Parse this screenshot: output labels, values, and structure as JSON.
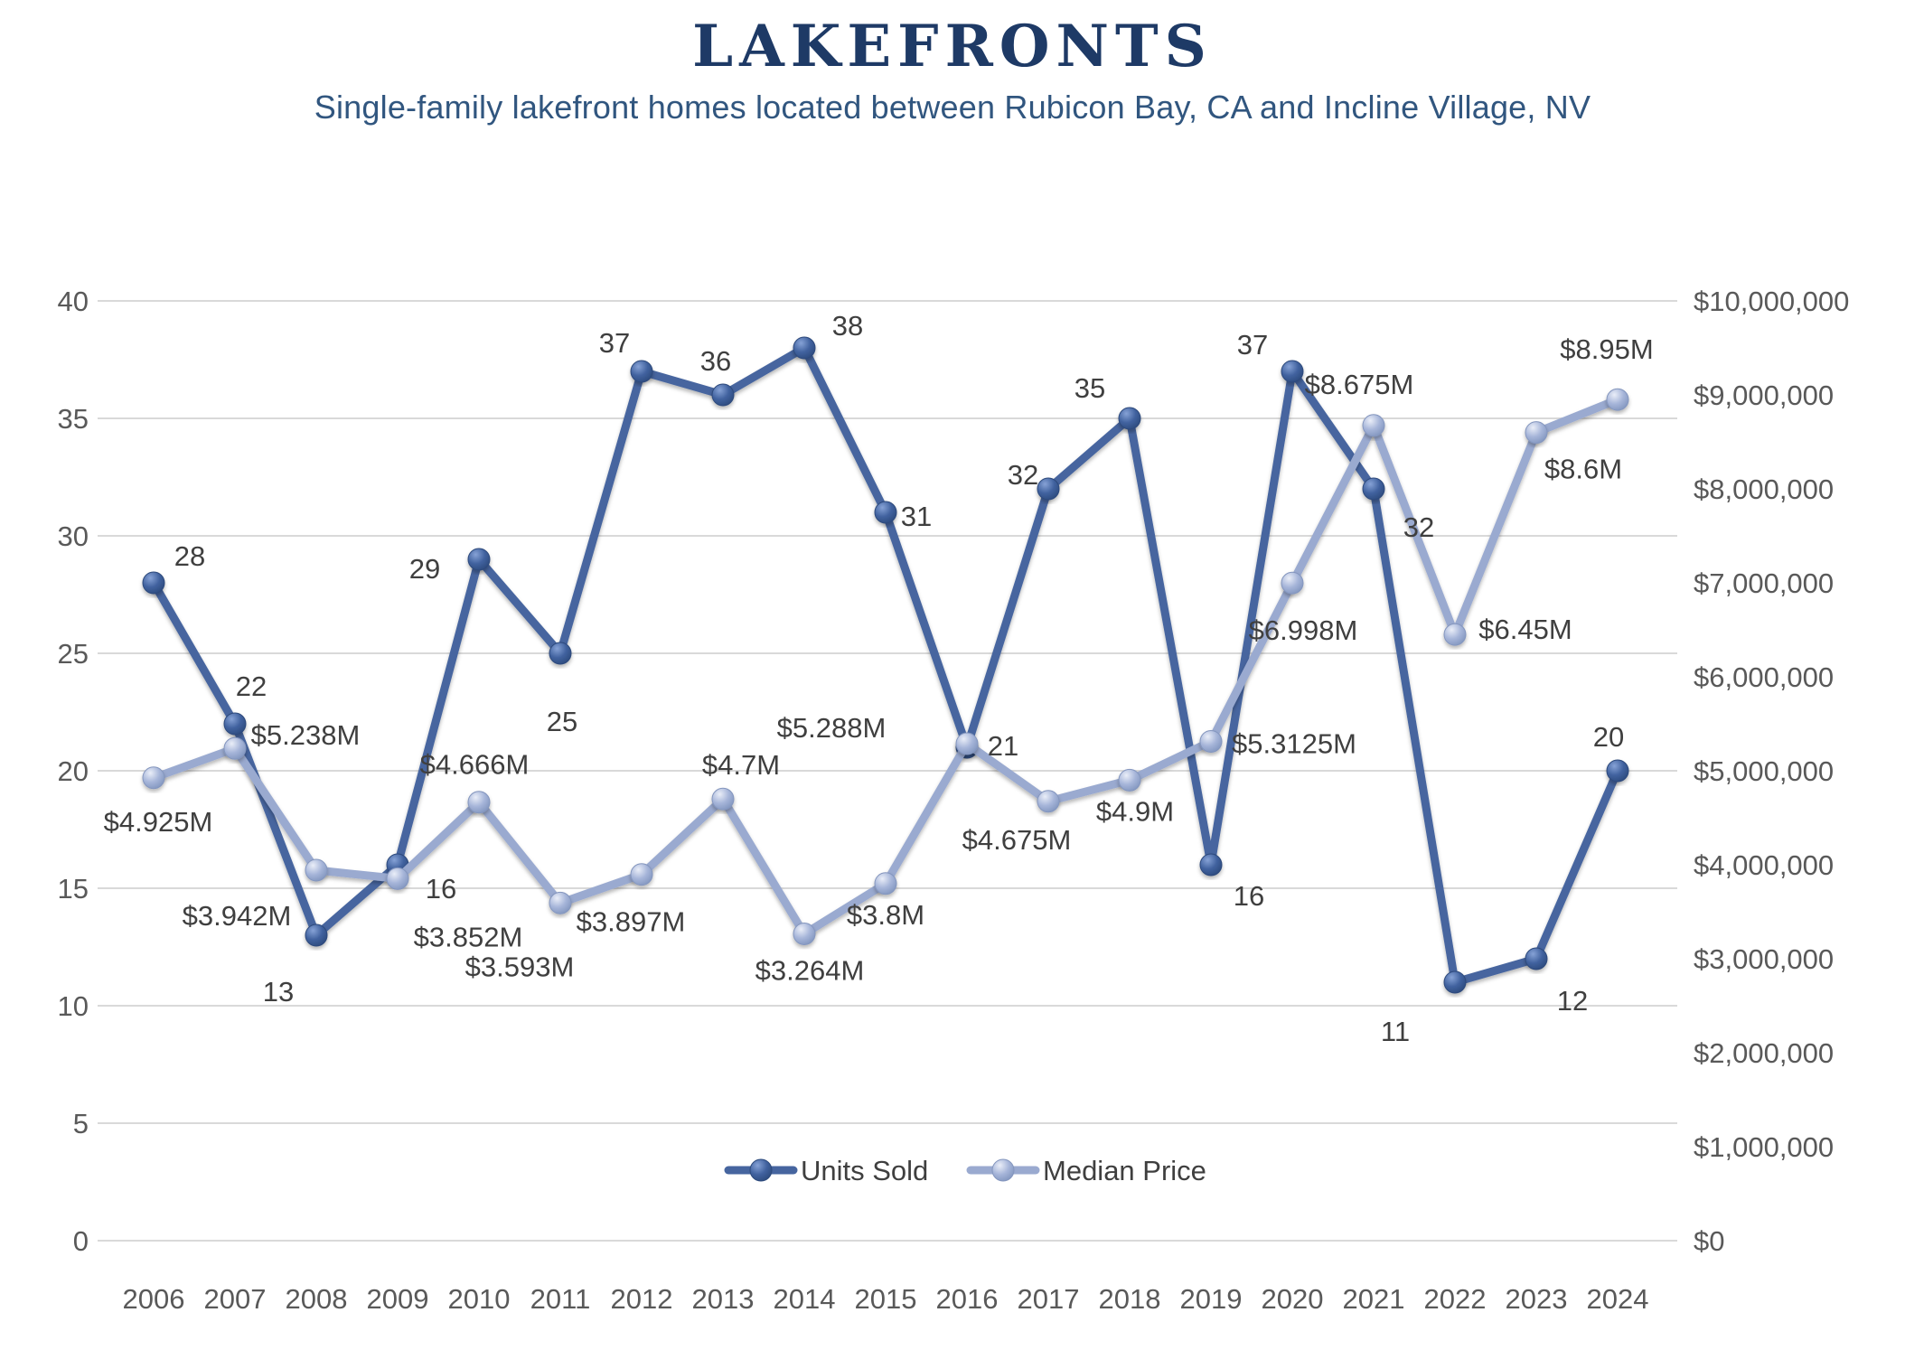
{
  "header": {
    "title": "LAKEFRONTS",
    "subtitle": "Single-family lakefront homes located between Rubicon Bay, CA and Incline Village, NV"
  },
  "legend": {
    "units_label": "Units Sold",
    "price_label": "Median Price"
  },
  "colors": {
    "title": "#1e3a66",
    "subtitle": "#31567f",
    "units_line": "#46659f",
    "price_line": "#9aaad0",
    "axis_text": "#595959",
    "data_label": "#3f3f3f",
    "gridline": "#d9d9d9"
  },
  "chart_data": {
    "type": "line",
    "title": "LAKEFRONTS",
    "subtitle": "Single-family lakefront homes located between Rubicon Bay, CA and Incline Village, NV",
    "categories": [
      "2006",
      "2007",
      "2008",
      "2009",
      "2010",
      "2011",
      "2012",
      "2013",
      "2014",
      "2015",
      "2016",
      "2017",
      "2018",
      "2019",
      "2020",
      "2021",
      "2022",
      "2023",
      "2024"
    ],
    "series": [
      {
        "name": "Units Sold",
        "axis": "left",
        "values": [
          28,
          22,
          13,
          16,
          29,
          25,
          37,
          36,
          38,
          31,
          21,
          32,
          35,
          16,
          37,
          32,
          11,
          12,
          20
        ],
        "labels": [
          "28",
          "22",
          "13",
          "16",
          "29",
          "25",
          "37",
          "36",
          "38",
          "31",
          "21",
          "32",
          "35",
          "16",
          "37",
          "32",
          "11",
          "12",
          "20"
        ]
      },
      {
        "name": "Median Price",
        "axis": "right",
        "values": [
          4925000,
          5238000,
          3942000,
          3852000,
          4666000,
          3593000,
          3897000,
          4700000,
          3264000,
          3800000,
          5288000,
          4675000,
          4900000,
          5312500,
          6998000,
          8675000,
          6450000,
          8600000,
          8950000
        ],
        "labels": [
          "$4.925M",
          "$5.238M",
          "$3.942M",
          "$3.852M",
          "$4.666M",
          "$3.593M",
          "$3.897M",
          "$4.7M",
          "$3.264M",
          "$3.8M",
          "$5.288M",
          "$4.675M",
          "$4.9M",
          "$5.3125M",
          "$6.998M",
          "$8.675M",
          "$6.45M",
          "$8.6M",
          "$8.95M"
        ]
      }
    ],
    "left_axis": {
      "min": 0,
      "max": 40,
      "step": 5,
      "ticks": [
        "0",
        "5",
        "10",
        "15",
        "20",
        "25",
        "30",
        "35",
        "40"
      ]
    },
    "right_axis": {
      "min": 0,
      "max": 10000000,
      "step": 1000000,
      "ticks": [
        "$0",
        "$1,000,000",
        "$2,000,000",
        "$3,000,000",
        "$4,000,000",
        "$5,000,000",
        "$6,000,000",
        "$7,000,000",
        "$8,000,000",
        "$9,000,000",
        "$10,000,000"
      ]
    },
    "grid": "horizontal",
    "legend_position": "bottom-center"
  }
}
